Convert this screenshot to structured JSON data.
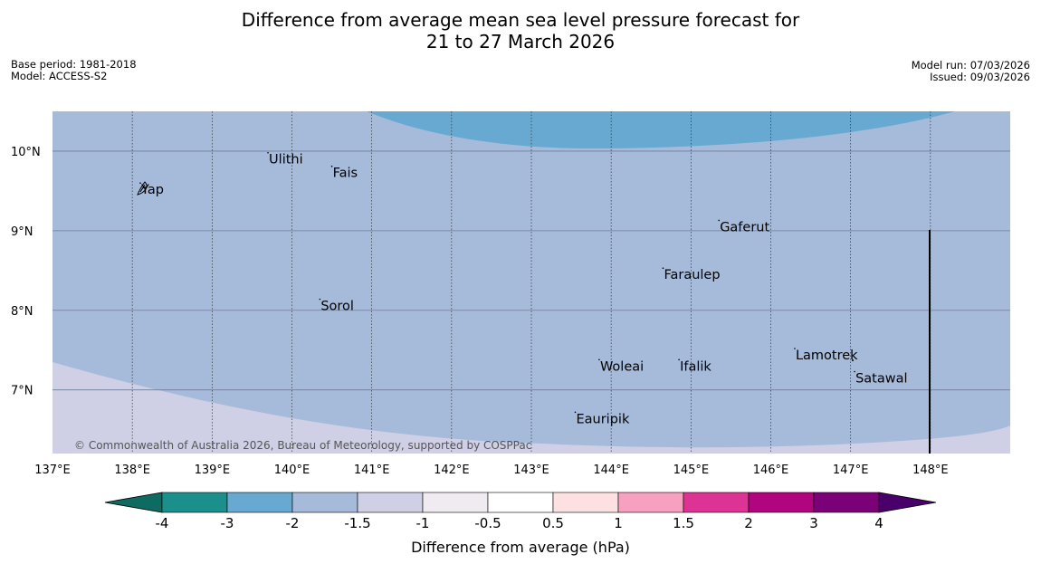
{
  "header": {
    "title_line1": "Difference from average mean sea level pressure forecast for",
    "title_line2": "21 to 27 March 2026",
    "base_period": "Base period: 1981-2018",
    "model": "Model: ACCESS-S2",
    "model_run": "Model run: 07/03/2026",
    "issued": "Issued: 09/03/2026"
  },
  "map": {
    "lon_range": [
      137.0,
      149.0
    ],
    "lat_range": [
      6.2,
      10.5
    ],
    "lat_ticks": [
      "10°N",
      "9°N",
      "8°N",
      "7°N"
    ],
    "lon_ticks": [
      "137°E",
      "138°E",
      "139°E",
      "140°E",
      "141°E",
      "142°E",
      "143°E",
      "144°E",
      "145°E",
      "146°E",
      "147°E",
      "148°E"
    ],
    "places": [
      {
        "name": "Yap",
        "lon": 138.1,
        "lat": 9.52
      },
      {
        "name": "Ulithi",
        "lon": 139.7,
        "lat": 9.9
      },
      {
        "name": "Fais",
        "lon": 140.5,
        "lat": 9.73
      },
      {
        "name": "Gaferut",
        "lon": 145.35,
        "lat": 9.05
      },
      {
        "name": "Faraulep",
        "lon": 144.65,
        "lat": 8.45
      },
      {
        "name": "Sorol",
        "lon": 140.35,
        "lat": 8.06
      },
      {
        "name": "Woleai",
        "lon": 143.85,
        "lat": 7.3
      },
      {
        "name": "Ifalik",
        "lon": 144.85,
        "lat": 7.3
      },
      {
        "name": "Lamotrek",
        "lon": 146.3,
        "lat": 7.44
      },
      {
        "name": "Satawal",
        "lon": 147.05,
        "lat": 7.15
      },
      {
        "name": "Eauripik",
        "lon": 143.55,
        "lat": 6.64
      }
    ],
    "copyright": "© Commonwealth of Australia 2026, Bureau of Meteorology, supported by COSPPac"
  },
  "colorbar": {
    "labels": [
      "-4",
      "-3",
      "-2",
      "-1.5",
      "-1",
      "-0.5",
      "0.5",
      "1",
      "1.5",
      "2",
      "3",
      "4"
    ],
    "colors": [
      "#1a8f8c",
      "#67a9d0",
      "#a6bada",
      "#cfd0e5",
      "#efebf1",
      "#ffffff",
      "#fde0e1",
      "#f8a0bf",
      "#dc3395",
      "#b1047f",
      "#7a0177"
    ],
    "under_color": "#0d6b61",
    "over_color": "#49006a",
    "title": "Difference from average (hPa)"
  },
  "colors": {
    "region_main": "#a6bada",
    "region_low": "#67a9d0",
    "region_light": "#cfd0e5"
  }
}
